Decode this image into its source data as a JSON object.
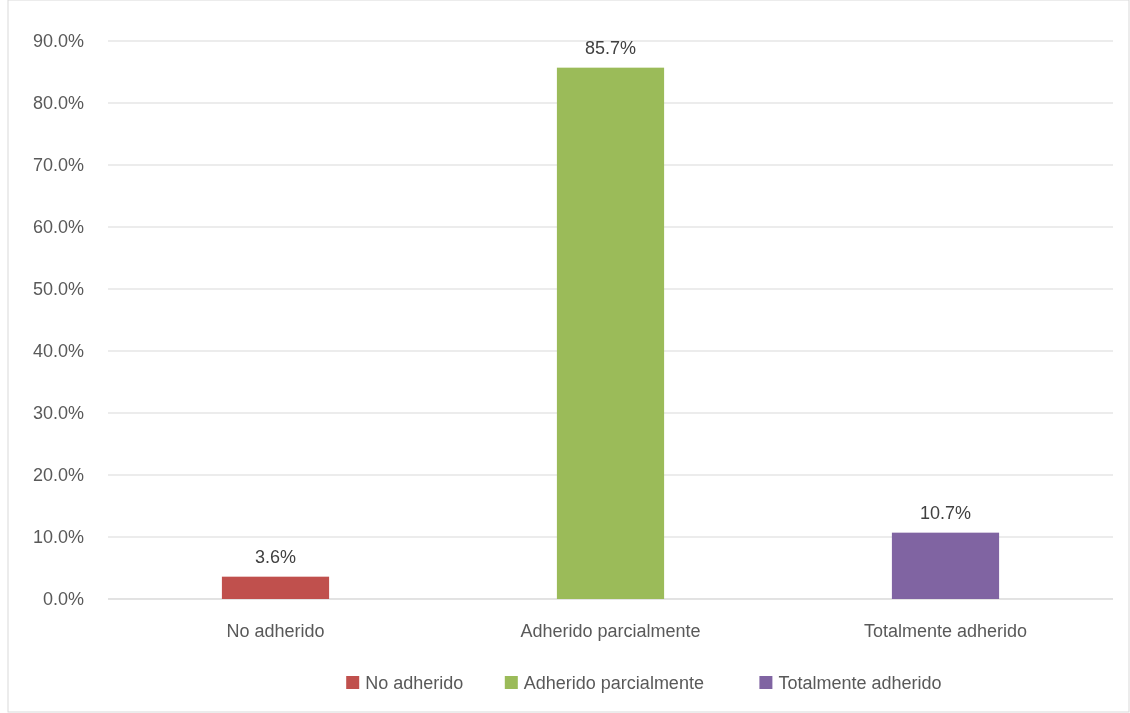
{
  "chart_data": {
    "type": "bar",
    "categories": [
      "No adherido",
      "Adherido parcialmente",
      "Totalmente adherido"
    ],
    "stacked": true,
    "series": [
      {
        "name": "No adherido",
        "color": "#c0504d",
        "values": [
          3.6,
          null,
          null
        ],
        "value_labels": [
          "3.6%",
          null,
          null
        ]
      },
      {
        "name": "Adherido parcialmente",
        "color": "#9bbb59",
        "values": [
          null,
          85.7,
          null
        ],
        "value_labels": [
          null,
          "85.7%",
          null
        ]
      },
      {
        "name": "Totalmente adherido",
        "color": "#8064a2",
        "values": [
          null,
          null,
          10.7
        ],
        "value_labels": [
          null,
          null,
          "10.7%"
        ]
      }
    ],
    "ylim": [
      0,
      90
    ],
    "yticks": [
      {
        "value": 0,
        "label": "0.0%"
      },
      {
        "value": 10,
        "label": "10.0%"
      },
      {
        "value": 20,
        "label": "20.0%"
      },
      {
        "value": 30,
        "label": "30.0%"
      },
      {
        "value": 40,
        "label": "40.0%"
      },
      {
        "value": 50,
        "label": "50.0%"
      },
      {
        "value": 60,
        "label": "60.0%"
      },
      {
        "value": 70,
        "label": "70.0%"
      },
      {
        "value": 80,
        "label": "80.0%"
      },
      {
        "value": 90,
        "label": "90.0%"
      }
    ],
    "grid": "y",
    "legend": "bottom"
  }
}
